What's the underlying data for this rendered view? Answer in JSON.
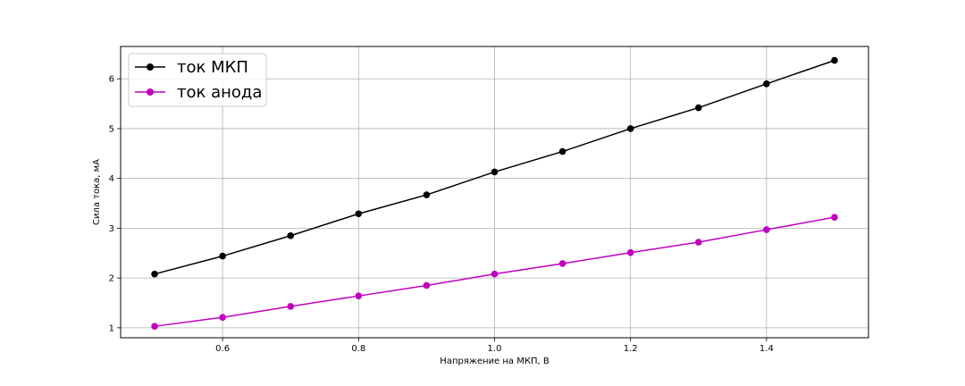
{
  "chart_data": {
    "type": "line",
    "title": "",
    "xlabel": "Напряжение на МКП, В",
    "ylabel": "Сила тока, мА",
    "xlim": [
      0.45,
      1.55
    ],
    "ylim": [
      0.8,
      6.65
    ],
    "xticks": [
      0.6,
      0.8,
      1.0,
      1.2,
      1.4
    ],
    "xtick_labels": [
      "0.6",
      "0.8",
      "1.0",
      "1.2",
      "1.4"
    ],
    "yticks": [
      1,
      2,
      3,
      4,
      5,
      6
    ],
    "ytick_labels": [
      "1",
      "2",
      "3",
      "4",
      "5",
      "6"
    ],
    "grid": true,
    "legend_position": "top-left",
    "x": [
      0.5,
      0.6,
      0.7,
      0.8,
      0.9,
      1.0,
      1.1,
      1.2,
      1.3,
      1.4,
      1.5
    ],
    "series": [
      {
        "name": "ток МКП",
        "color": "#000000",
        "marker": "circle",
        "values": [
          2.08,
          2.44,
          2.85,
          3.29,
          3.67,
          4.13,
          4.54,
          5.0,
          5.42,
          5.9,
          6.37
        ]
      },
      {
        "name": "ток анода",
        "color": "#bf00bf",
        "marker": "circle",
        "values": [
          1.03,
          1.21,
          1.43,
          1.64,
          1.85,
          2.08,
          2.29,
          2.51,
          2.72,
          2.97,
          3.22
        ]
      }
    ]
  }
}
